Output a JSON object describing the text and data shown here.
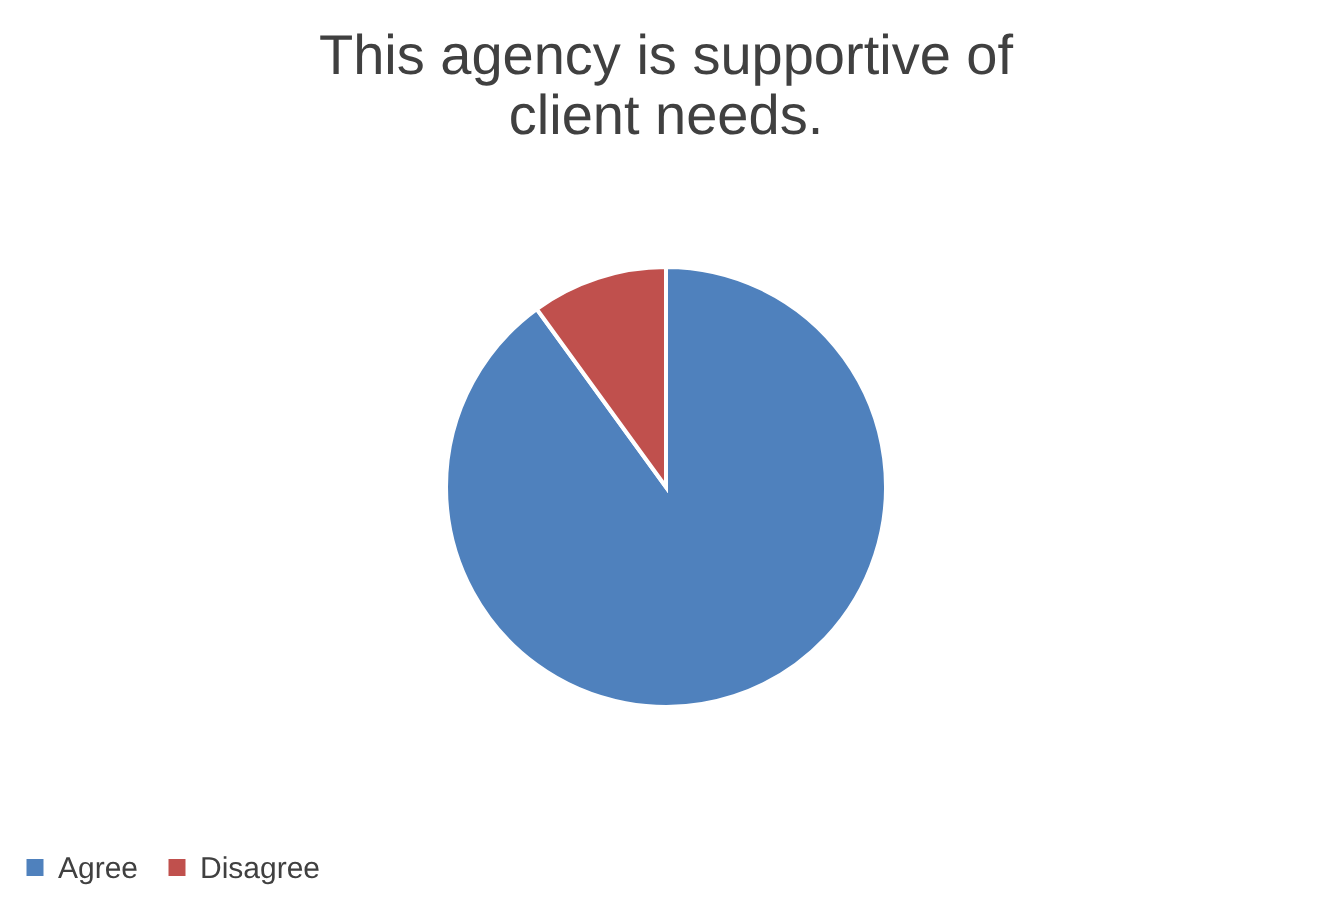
{
  "chart_data": {
    "type": "pie",
    "title": "This agency is supportive of client needs.",
    "categories": [
      "Agree",
      "Disagree"
    ],
    "values": [
      90,
      10
    ],
    "colors": [
      "#4f81bd",
      "#c0504d"
    ],
    "legend": "bottom"
  }
}
